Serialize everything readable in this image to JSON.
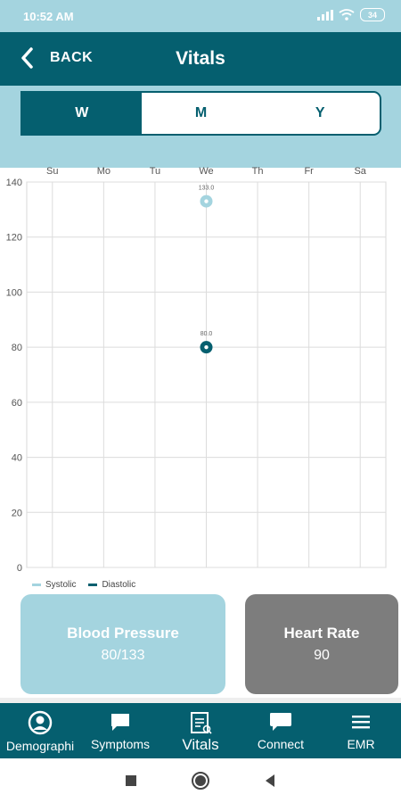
{
  "status_bar": {
    "time": "10:52 AM",
    "battery": "34"
  },
  "header": {
    "back_label": "BACK",
    "title": "Vitals"
  },
  "period_tabs": [
    {
      "label": "W",
      "active": true
    },
    {
      "label": "M",
      "active": false
    },
    {
      "label": "Y",
      "active": false
    }
  ],
  "chart_data": {
    "type": "scatter",
    "categories": [
      "Su",
      "Mo",
      "Tu",
      "We",
      "Th",
      "Fr",
      "Sa"
    ],
    "ylim": [
      0,
      140
    ],
    "yticks": [
      0,
      20,
      40,
      60,
      80,
      100,
      120,
      140
    ],
    "grid": true,
    "legend_position": "bottom-left",
    "series": [
      {
        "name": "Systolic",
        "color": "#a4d4df",
        "points": [
          {
            "x": "We",
            "y": 133.0,
            "label": "133.0"
          }
        ]
      },
      {
        "name": "Diastolic",
        "color": "#055f6f",
        "points": [
          {
            "x": "We",
            "y": 80.0,
            "label": "80.0"
          }
        ]
      }
    ]
  },
  "cards": {
    "blood_pressure": {
      "title": "Blood Pressure",
      "value": "80/133"
    },
    "heart_rate": {
      "title": "Heart Rate",
      "value": "90"
    }
  },
  "bottom_nav": [
    {
      "label": "Demographi",
      "icon": "person-icon",
      "active": false
    },
    {
      "label": "Symptoms",
      "icon": "chat-bubble-icon",
      "active": false
    },
    {
      "label": "Vitals",
      "icon": "clipboard-icon",
      "active": true
    },
    {
      "label": "Connect",
      "icon": "message-icon",
      "active": false
    },
    {
      "label": "EMR",
      "icon": "menu-icon",
      "active": false
    }
  ],
  "colors": {
    "primary": "#055f6f",
    "light": "#a4d4df",
    "gray": "#7d7d7d"
  }
}
